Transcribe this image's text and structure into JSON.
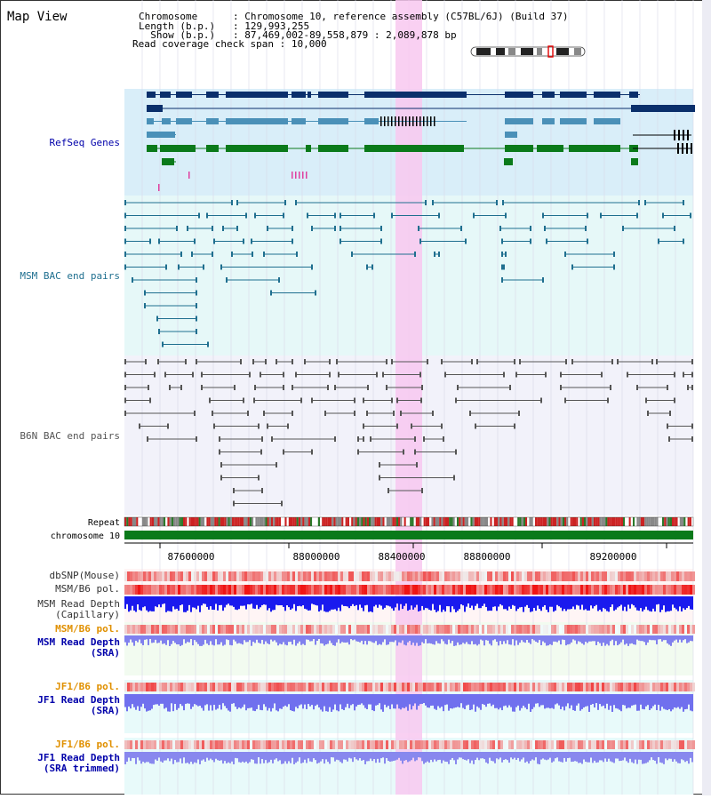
{
  "view_title": "Map View",
  "header": {
    "lines": [
      {
        "label": "Chromosome      ",
        "value": "Chromosome 10, reference assembly (C57BL/6J) (Build 37)"
      },
      {
        "label": "Length (b.p.)   ",
        "value": "129,993,255"
      },
      {
        "label": "  Show (b.p.)   ",
        "value": "87,469,002-89,558,879 : 2,089,878 bp"
      },
      {
        "label": "Read coverage check span",
        "value": "10,000"
      }
    ]
  },
  "tracks": {
    "refseq": "RefSeq Genes",
    "msm_bac": "MSM BAC end pairs",
    "b6n_bac": "B6N BAC end pairs",
    "repeat": "Repeat",
    "chromosome": "chromosome 10",
    "dbsnp": "dbSNP(Mouse)",
    "msm_pol": "MSM/B6 pol.",
    "msm_depth_cap_1": "MSM Read Depth",
    "msm_depth_cap_2": "(Capillary)",
    "msm_pol2": "MSM/B6 pol.",
    "msm_depth_sra_1": "MSM Read Depth",
    "msm_depth_sra_2": "(SRA)",
    "jf1_pol": "JF1/B6 pol.",
    "jf1_depth_sra_1": "JF1 Read Depth",
    "jf1_depth_sra_2": "(SRA)",
    "jf1_pol2": "JF1/B6 pol.",
    "jf1_depth_trim_1": "JF1 Read Depth",
    "jf1_depth_trim_2": "(SRA trimmed)"
  },
  "axis": {
    "ticks": [
      "87600000",
      "88000000",
      "88400000",
      "88800000",
      "89200000"
    ]
  },
  "colors": {
    "refseq_dark": "#0a2f6b",
    "refseq_mid": "#4a90b8",
    "refseq_green": "#0a7a1a",
    "msm_bac": "#1f6f8f",
    "b6n_bac": "#555555",
    "highlight": "#f8c8f0",
    "depth_blue": "#1a1aee",
    "depth_light": "#7777ee",
    "label_blue": "#0000aa",
    "label_orange": "#e09000"
  }
}
